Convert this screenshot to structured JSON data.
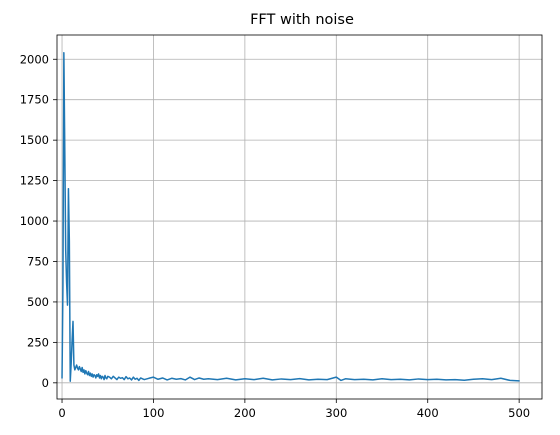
{
  "chart_data": {
    "type": "line",
    "title": "FFT with noise",
    "xlabel": "",
    "ylabel": "",
    "xlim": [
      -5.5,
      525
    ],
    "ylim": [
      -100,
      2150
    ],
    "x_ticks": [
      0,
      100,
      200,
      300,
      400,
      500
    ],
    "y_ticks": [
      0,
      250,
      500,
      750,
      1000,
      1250,
      1500,
      1750,
      2000
    ],
    "grid": true,
    "legend": "none",
    "series": [
      {
        "color": "#1f77b4",
        "points": [
          [
            0,
            30
          ],
          [
            1,
            600
          ],
          [
            2,
            2040
          ],
          [
            3,
            1450
          ],
          [
            4,
            820
          ],
          [
            5,
            620
          ],
          [
            6,
            480
          ],
          [
            7,
            1200
          ],
          [
            8,
            880
          ],
          [
            9,
            10
          ],
          [
            10,
            120
          ],
          [
            11,
            260
          ],
          [
            12,
            380
          ],
          [
            13,
            110
          ],
          [
            14,
            80
          ],
          [
            15,
            95
          ],
          [
            16,
            110
          ],
          [
            17,
            90
          ],
          [
            18,
            80
          ],
          [
            19,
            100
          ],
          [
            20,
            85
          ],
          [
            21,
            70
          ],
          [
            22,
            95
          ],
          [
            23,
            65
          ],
          [
            24,
            80
          ],
          [
            25,
            55
          ],
          [
            26,
            75
          ],
          [
            27,
            60
          ],
          [
            28,
            50
          ],
          [
            29,
            70
          ],
          [
            30,
            45
          ],
          [
            31,
            60
          ],
          [
            32,
            40
          ],
          [
            33,
            55
          ],
          [
            34,
            35
          ],
          [
            35,
            50
          ],
          [
            36,
            45
          ],
          [
            37,
            30
          ],
          [
            38,
            50
          ],
          [
            39,
            40
          ],
          [
            40,
            55
          ],
          [
            41,
            30
          ],
          [
            42,
            45
          ],
          [
            43,
            25
          ],
          [
            44,
            40
          ],
          [
            45,
            35
          ],
          [
            46,
            20
          ],
          [
            47,
            45
          ],
          [
            48,
            30
          ],
          [
            49,
            25
          ],
          [
            50,
            40
          ],
          [
            52,
            35
          ],
          [
            54,
            25
          ],
          [
            56,
            40
          ],
          [
            58,
            30
          ],
          [
            60,
            20
          ],
          [
            62,
            35
          ],
          [
            64,
            28
          ],
          [
            66,
            32
          ],
          [
            68,
            20
          ],
          [
            70,
            38
          ],
          [
            72,
            25
          ],
          [
            74,
            30
          ],
          [
            76,
            18
          ],
          [
            78,
            35
          ],
          [
            80,
            22
          ],
          [
            82,
            28
          ],
          [
            84,
            15
          ],
          [
            86,
            30
          ],
          [
            88,
            25
          ],
          [
            90,
            20
          ],
          [
            95,
            28
          ],
          [
            100,
            35
          ],
          [
            105,
            22
          ],
          [
            110,
            30
          ],
          [
            115,
            18
          ],
          [
            120,
            28
          ],
          [
            125,
            22
          ],
          [
            130,
            26
          ],
          [
            135,
            18
          ],
          [
            140,
            35
          ],
          [
            145,
            20
          ],
          [
            150,
            30
          ],
          [
            155,
            22
          ],
          [
            160,
            25
          ],
          [
            170,
            20
          ],
          [
            180,
            28
          ],
          [
            190,
            18
          ],
          [
            200,
            25
          ],
          [
            210,
            20
          ],
          [
            220,
            28
          ],
          [
            230,
            18
          ],
          [
            240,
            24
          ],
          [
            250,
            20
          ],
          [
            260,
            26
          ],
          [
            270,
            18
          ],
          [
            280,
            22
          ],
          [
            290,
            20
          ],
          [
            300,
            35
          ],
          [
            305,
            15
          ],
          [
            310,
            25
          ],
          [
            320,
            20
          ],
          [
            330,
            22
          ],
          [
            340,
            18
          ],
          [
            350,
            25
          ],
          [
            360,
            20
          ],
          [
            370,
            22
          ],
          [
            380,
            18
          ],
          [
            390,
            24
          ],
          [
            400,
            20
          ],
          [
            410,
            22
          ],
          [
            420,
            18
          ],
          [
            430,
            20
          ],
          [
            440,
            16
          ],
          [
            450,
            22
          ],
          [
            460,
            25
          ],
          [
            470,
            20
          ],
          [
            480,
            28
          ],
          [
            490,
            15
          ],
          [
            500,
            12
          ]
        ]
      }
    ]
  }
}
